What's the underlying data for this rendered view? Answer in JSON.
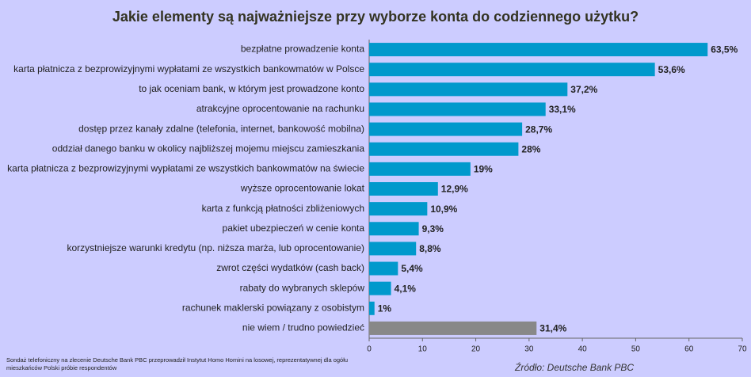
{
  "chart_data": {
    "type": "hbar",
    "title": "Jakie elementy są najważniejsze przy wyborze konta do codziennego użytku?",
    "categories": [
      "bezpłatne prowadzenie konta",
      "karta płatnicza z bezprowizyjnymi wypłatami ze wszystkich bankowmatów w Polsce",
      "to jak oceniam bank, w którym jest prowadzone konto",
      "atrakcyjne oprocentowanie na rachunku",
      "dostęp przez kanały zdalne (telefonia, internet, bankowość mobilna)",
      "oddział danego banku w okolicy najbliższej mojemu miejscu zamieszkania",
      "karta płatnicza z bezprowizyjnymi wypłatami ze wszystkich bankowmatów na świecie",
      "wyższe oprocentowanie lokat",
      "karta z funkcją płatności zbliżeniowych",
      "pakiet ubezpieczeń w cenie konta",
      "korzystniejsze warunki kredytu (np. niższa marża, lub oprocentowanie)",
      "zwrot części wydatków (cash back)",
      "rabaty do wybranych sklepów",
      "rachunek maklerski powiązany z osobistym",
      "nie wiem / trudno powiedzieć"
    ],
    "values": [
      63.5,
      53.6,
      37.2,
      33.1,
      28.7,
      28,
      19,
      12.9,
      10.9,
      9.3,
      8.8,
      5.4,
      4.1,
      1,
      31.4
    ],
    "value_labels": [
      "63,5%",
      "53,6%",
      "37,2%",
      "33,1%",
      "28,7%",
      "28%",
      "19%",
      "12,9%",
      "10,9%",
      "9,3%",
      "8,8%",
      "5,4%",
      "4,1%",
      "1%",
      "31,4%"
    ],
    "colors": [
      "#0099cc",
      "#0099cc",
      "#0099cc",
      "#0099cc",
      "#0099cc",
      "#0099cc",
      "#0099cc",
      "#0099cc",
      "#0099cc",
      "#0099cc",
      "#0099cc",
      "#0099cc",
      "#0099cc",
      "#0099cc",
      "#888888"
    ],
    "xlim": [
      0,
      70
    ],
    "xticks": [
      0,
      10,
      20,
      30,
      40,
      50,
      60,
      70
    ],
    "grid": false,
    "footnote_lines": [
      "Sondaż telefoniczny na zlecenie Deutsche Bank PBC przeprowadził Instytut Homo Homini na losowej, reprezentatywnej dla ogółu",
      "mieszkańców Polski próbie respondentów"
    ],
    "source": "Źródło: Deutsche Bank PBC"
  }
}
